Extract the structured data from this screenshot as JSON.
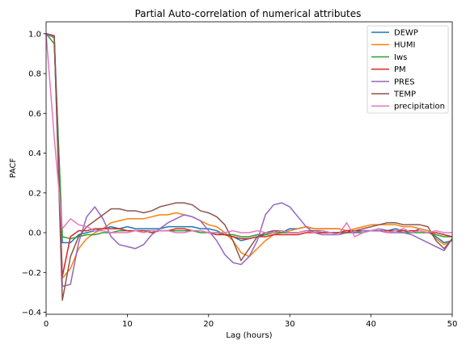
{
  "chart_data": {
    "type": "line",
    "title": "Partial Auto-correlation of numerical attributes",
    "xlabel": "Lag (hours)",
    "ylabel": "PACF",
    "xlim": [
      0,
      50
    ],
    "ylim": [
      -0.41,
      1.06
    ],
    "xticks": [
      0,
      10,
      20,
      30,
      40,
      50
    ],
    "yticks": [
      -0.4,
      -0.2,
      0.0,
      0.2,
      0.4,
      0.6,
      0.8,
      1.0
    ],
    "xtick_labels": [
      "0",
      "10",
      "20",
      "30",
      "40",
      "50"
    ],
    "ytick_labels": [
      "−0.4",
      "−0.2",
      "0.0",
      "0.2",
      "0.4",
      "0.6",
      "0.8",
      "1.0"
    ],
    "grid": false,
    "legend_position": "top-right",
    "x": [
      0,
      1,
      2,
      3,
      4,
      5,
      6,
      7,
      8,
      9,
      10,
      11,
      12,
      13,
      14,
      15,
      16,
      17,
      18,
      19,
      20,
      21,
      22,
      23,
      24,
      25,
      26,
      27,
      28,
      29,
      30,
      31,
      32,
      33,
      34,
      35,
      36,
      37,
      38,
      39,
      40,
      41,
      42,
      43,
      44,
      45,
      46,
      47,
      48,
      49,
      50
    ],
    "series": [
      {
        "name": "DEWP",
        "color": "#1f77b4",
        "values": [
          1.0,
          0.99,
          -0.05,
          -0.05,
          -0.01,
          0.0,
          0.01,
          0.02,
          0.03,
          0.02,
          0.03,
          0.02,
          0.02,
          0.02,
          0.02,
          0.03,
          0.03,
          0.03,
          0.03,
          0.02,
          0.02,
          0.01,
          -0.01,
          -0.02,
          -0.04,
          -0.03,
          -0.02,
          -0.01,
          0.01,
          0.0,
          0.02,
          0.02,
          0.03,
          0.02,
          0.02,
          0.02,
          0.02,
          0.01,
          0.0,
          0.01,
          0.01,
          0.02,
          0.01,
          0.02,
          0.01,
          0.0,
          0.02,
          0.01,
          -0.02,
          -0.05,
          -0.04
        ]
      },
      {
        "name": "HUMI",
        "color": "#ff7f0e",
        "values": [
          1.0,
          0.98,
          -0.23,
          -0.18,
          -0.08,
          -0.03,
          0.0,
          0.02,
          0.05,
          0.06,
          0.07,
          0.07,
          0.07,
          0.08,
          0.09,
          0.09,
          0.1,
          0.09,
          0.08,
          0.06,
          0.04,
          0.03,
          0.0,
          -0.04,
          -0.1,
          -0.12,
          -0.08,
          -0.04,
          -0.01,
          0.0,
          0.01,
          0.02,
          0.03,
          0.02,
          0.02,
          0.02,
          0.02,
          0.01,
          0.02,
          0.03,
          0.04,
          0.04,
          0.04,
          0.04,
          0.03,
          0.03,
          0.02,
          0.01,
          -0.03,
          -0.06,
          -0.04
        ]
      },
      {
        "name": "Iws",
        "color": "#2ca02c",
        "values": [
          1.0,
          0.95,
          -0.02,
          -0.03,
          -0.02,
          -0.01,
          -0.01,
          0.0,
          0.0,
          0.01,
          0.01,
          0.01,
          0.01,
          0.01,
          0.01,
          0.01,
          0.01,
          0.01,
          0.01,
          0.0,
          0.0,
          0.0,
          -0.01,
          -0.01,
          -0.02,
          -0.02,
          -0.01,
          -0.01,
          0.0,
          0.0,
          0.0,
          0.0,
          0.01,
          0.0,
          0.0,
          0.0,
          0.0,
          0.0,
          0.0,
          0.0,
          0.01,
          0.01,
          0.01,
          0.01,
          0.0,
          0.0,
          0.0,
          0.0,
          -0.01,
          -0.02,
          -0.02
        ]
      },
      {
        "name": "PM",
        "color": "#d62728",
        "values": [
          1.0,
          0.99,
          -0.22,
          -0.02,
          0.01,
          0.01,
          0.02,
          0.02,
          0.02,
          0.02,
          0.01,
          0.01,
          0.01,
          0.0,
          0.01,
          0.01,
          0.02,
          0.02,
          0.01,
          0.01,
          0.0,
          -0.01,
          -0.01,
          -0.02,
          -0.03,
          -0.03,
          -0.02,
          -0.02,
          -0.01,
          -0.01,
          -0.01,
          -0.01,
          0.0,
          0.0,
          0.0,
          0.0,
          0.0,
          0.01,
          0.01,
          0.01,
          0.01,
          0.01,
          0.01,
          0.01,
          0.01,
          0.01,
          0.01,
          0.0,
          0.0,
          -0.01,
          -0.02
        ]
      },
      {
        "name": "PRES",
        "color": "#9467bd",
        "values": [
          1.0,
          0.98,
          -0.27,
          -0.26,
          -0.05,
          0.08,
          0.13,
          0.07,
          -0.02,
          -0.06,
          -0.07,
          -0.08,
          -0.06,
          -0.01,
          0.02,
          0.05,
          0.07,
          0.09,
          0.08,
          0.06,
          0.01,
          -0.04,
          -0.11,
          -0.15,
          -0.16,
          -0.12,
          -0.04,
          0.09,
          0.14,
          0.15,
          0.13,
          0.08,
          0.03,
          0.0,
          -0.01,
          -0.01,
          -0.01,
          0.0,
          0.0,
          0.01,
          0.01,
          0.01,
          0.0,
          0.0,
          0.0,
          -0.01,
          -0.03,
          -0.05,
          -0.07,
          -0.09,
          -0.03
        ]
      },
      {
        "name": "TEMP",
        "color": "#8c564b",
        "values": [
          1.0,
          0.99,
          -0.34,
          -0.12,
          -0.02,
          0.03,
          0.06,
          0.09,
          0.12,
          0.12,
          0.11,
          0.11,
          0.1,
          0.11,
          0.13,
          0.14,
          0.15,
          0.15,
          0.14,
          0.11,
          0.1,
          0.08,
          0.04,
          -0.04,
          -0.14,
          -0.08,
          -0.02,
          0.0,
          0.01,
          0.01,
          0.0,
          0.0,
          0.01,
          0.01,
          0.01,
          0.0,
          0.0,
          0.0,
          0.01,
          0.02,
          0.03,
          0.04,
          0.05,
          0.05,
          0.04,
          0.04,
          0.04,
          0.03,
          -0.04,
          -0.08,
          -0.03
        ]
      },
      {
        "name": "precipitation",
        "color": "#e377c2",
        "values": [
          1.0,
          0.48,
          0.02,
          0.07,
          0.04,
          0.03,
          0.01,
          0.01,
          0.0,
          0.0,
          0.0,
          0.01,
          0.0,
          0.01,
          0.01,
          0.01,
          0.0,
          0.0,
          0.01,
          0.01,
          0.0,
          0.0,
          0.0,
          0.01,
          0.0,
          0.0,
          0.01,
          0.0,
          0.0,
          0.01,
          0.0,
          0.0,
          0.01,
          0.0,
          0.01,
          0.0,
          -0.01,
          0.05,
          -0.02,
          0.0,
          0.01,
          0.02,
          0.0,
          0.01,
          0.02,
          0.0,
          0.01,
          0.0,
          0.01,
          0.0,
          0.0
        ]
      }
    ]
  }
}
